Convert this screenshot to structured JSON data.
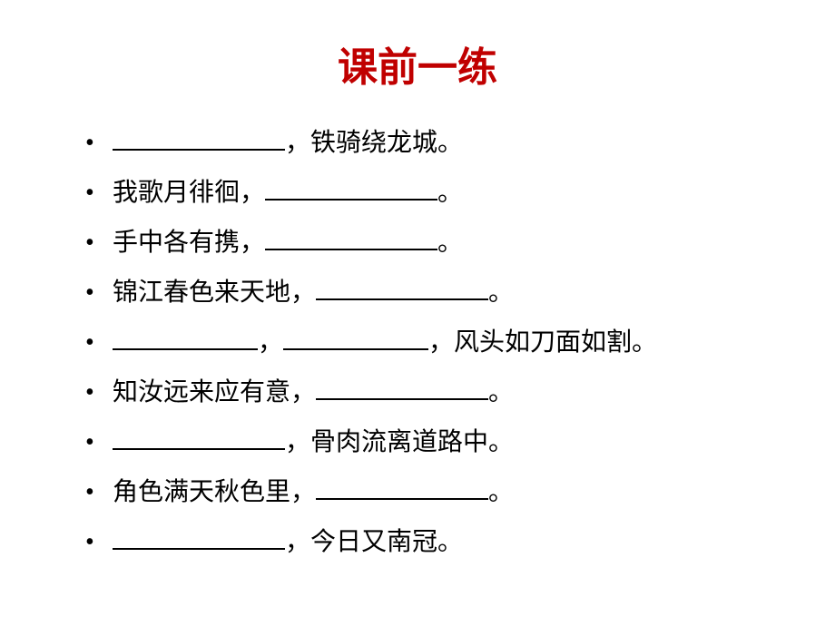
{
  "title": {
    "text": "课前一练",
    "color": "#c00000",
    "fontsize": 44
  },
  "list": {
    "fontsize": 28,
    "color": "#000000",
    "line_height": 55,
    "blank_width": 190,
    "items": [
      {
        "parts": [
          {
            "type": "blank"
          },
          {
            "type": "text",
            "value": "，铁骑绕龙城。"
          }
        ]
      },
      {
        "parts": [
          {
            "type": "text",
            "value": "我歌月徘徊，"
          },
          {
            "type": "blank"
          },
          {
            "type": "text",
            "value": "。"
          }
        ]
      },
      {
        "parts": [
          {
            "type": "text",
            "value": "手中各有携，"
          },
          {
            "type": "blank"
          },
          {
            "type": "text",
            "value": "。"
          }
        ]
      },
      {
        "parts": [
          {
            "type": "text",
            "value": "锦江春色来天地，"
          },
          {
            "type": "blank"
          },
          {
            "type": "text",
            "value": "。"
          }
        ]
      },
      {
        "parts": [
          {
            "type": "blank",
            "width": 160
          },
          {
            "type": "text",
            "value": "，"
          },
          {
            "type": "blank",
            "width": 160
          },
          {
            "type": "text",
            "value": "，风头如刀面如割。"
          }
        ]
      },
      {
        "parts": [
          {
            "type": "text",
            "value": "知汝远来应有意，"
          },
          {
            "type": "blank"
          },
          {
            "type": "text",
            "value": "。"
          }
        ]
      },
      {
        "parts": [
          {
            "type": "blank"
          },
          {
            "type": "text",
            "value": "，骨肉流离道路中。"
          }
        ]
      },
      {
        "parts": [
          {
            "type": "text",
            "value": "角色满天秋色里，"
          },
          {
            "type": "blank"
          },
          {
            "type": "text",
            "value": "。"
          }
        ]
      },
      {
        "parts": [
          {
            "type": "blank"
          },
          {
            "type": "text",
            "value": "，今日又南冠。"
          }
        ]
      }
    ]
  }
}
